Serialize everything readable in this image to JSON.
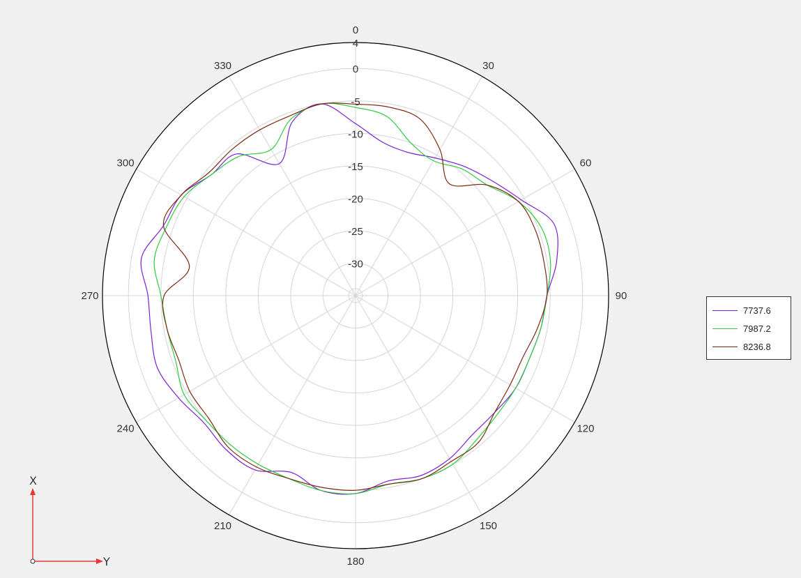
{
  "chart_data": {
    "type": "polar-line",
    "angle_ticks": [
      "0",
      "30",
      "60",
      "90",
      "120",
      "150",
      "180",
      "210",
      "240",
      "270",
      "300",
      "330"
    ],
    "radial_ticks": [
      4,
      0,
      -5,
      -10,
      -15,
      -20,
      -25,
      -30
    ],
    "radial_range": [
      -35,
      4
    ],
    "angles_deg": [
      0,
      10,
      20,
      30,
      40,
      50,
      60,
      70,
      80,
      90,
      100,
      110,
      120,
      130,
      140,
      150,
      160,
      170,
      180,
      190,
      200,
      210,
      220,
      230,
      240,
      250,
      260,
      270,
      280,
      290,
      300,
      310,
      320,
      330,
      340,
      350
    ],
    "series": [
      {
        "name": "7737.6",
        "color": "#7a1fd6",
        "values": [
          -8.5,
          -11,
          -11.5,
          -10.5,
          -9,
          -7.5,
          -5.5,
          -2.5,
          -3.5,
          -5.5,
          -6,
          -6.5,
          -6.5,
          -7,
          -7,
          -6,
          -5.5,
          -6,
          -4.5,
          -4.5,
          -6,
          -4,
          -4,
          -4.5,
          -3.5,
          -2.5,
          -3,
          -3,
          -1.5,
          -3.5,
          -4,
          -6,
          -6.5,
          -11.5,
          -6.5,
          -5
        ]
      },
      {
        "name": "7987.2",
        "color": "#2ecc40",
        "values": [
          -6,
          -7,
          -10,
          -11,
          -9.5,
          -8.5,
          -6,
          -4.5,
          -4.5,
          -5.5,
          -6,
          -6.5,
          -6.5,
          -6.5,
          -6,
          -5,
          -5,
          -5.5,
          -4.5,
          -4.5,
          -5,
          -5,
          -5,
          -5,
          -4.5,
          -5.5,
          -5.5,
          -5,
          -3.5,
          -4,
          -4.5,
          -6,
          -7,
          -9,
          -6,
          -5
        ]
      },
      {
        "name": "8236.8",
        "color": "#7b2a10",
        "values": [
          -5.5,
          -5.5,
          -6,
          -9,
          -12.5,
          -8.5,
          -6,
          -5.5,
          -5.5,
          -5.5,
          -6.5,
          -7.5,
          -7.5,
          -7,
          -5.5,
          -5.5,
          -5,
          -5.5,
          -5,
          -5,
          -5,
          -4.5,
          -4.5,
          -5.5,
          -5.5,
          -6,
          -5.5,
          -5.5,
          -9,
          -3.5,
          -4,
          -5.5,
          -5.5,
          -5.5,
          -5.5,
          -5
        ]
      }
    ]
  },
  "axes_indicator": {
    "x_label": "X",
    "y_label": "Y"
  }
}
